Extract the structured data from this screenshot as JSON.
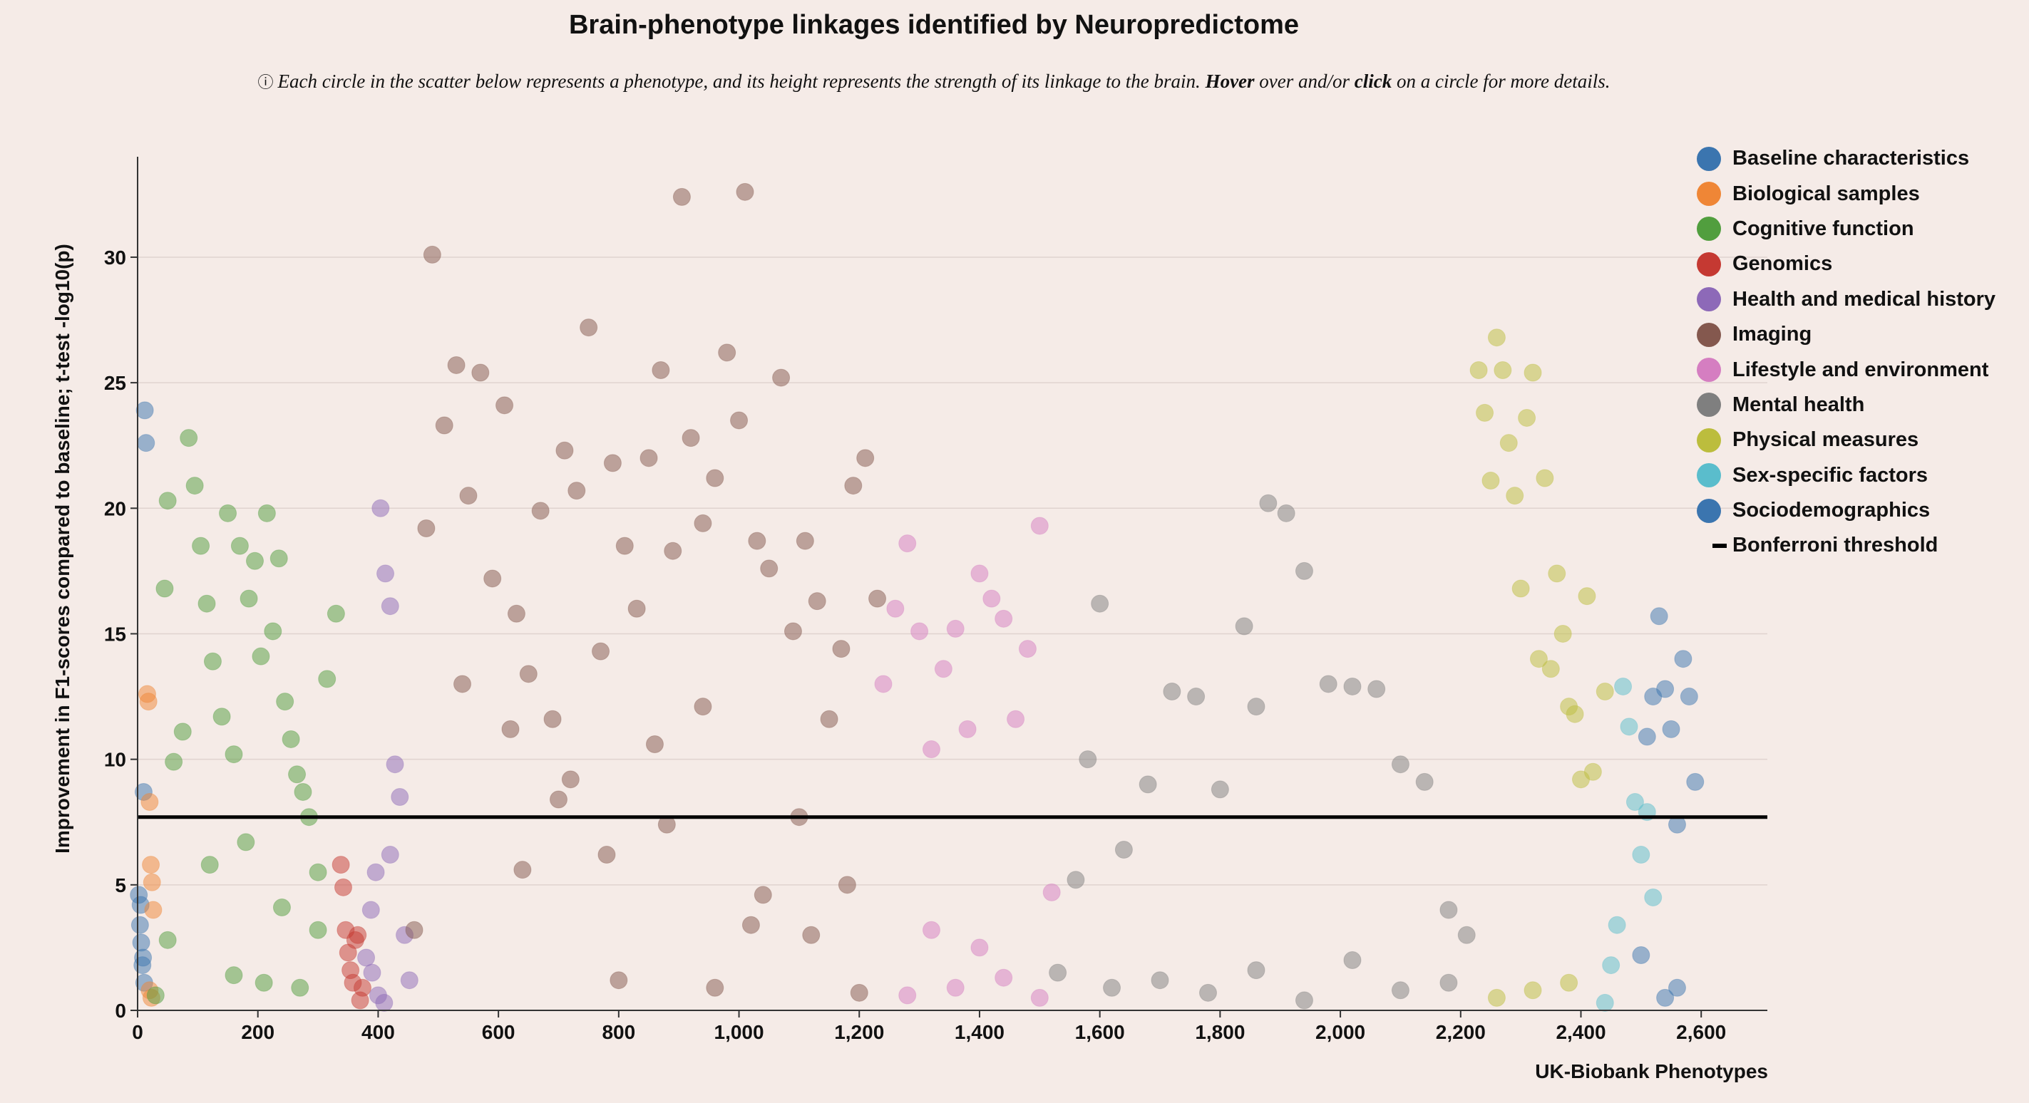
{
  "page": {
    "title": "Brain-phenotype linkages identified by Neuropredictome",
    "subtitle_icon": "ⓘ",
    "subtitle_part1": "Each circle in the scatter below represents a phenotype, and its height represents the strength of its linkage to the brain. ",
    "subtitle_hover": "Hover",
    "subtitle_part2": " over and/or ",
    "subtitle_click": "click",
    "subtitle_part3": " on a circle for more details."
  },
  "legend": {
    "threshold_label": "Bonferroni threshold"
  },
  "chart_data": {
    "type": "scatter",
    "title": "Brain-phenotype linkages identified by Neuropredictome",
    "xlabel": "UK-Biobank Phenotypes",
    "ylabel": "Improvement in F1-scores compared to baseline; t-test -log10(p)",
    "xlim": [
      0,
      2710
    ],
    "ylim": [
      0,
      34
    ],
    "xticks": [
      0,
      200,
      400,
      600,
      800,
      1000,
      1200,
      1400,
      1600,
      1800,
      2000,
      2200,
      2400,
      2600
    ],
    "xtick_labels": [
      "0",
      "200",
      "400",
      "600",
      "800",
      "1,000",
      "1,200",
      "1,400",
      "1,600",
      "1,800",
      "2,000",
      "2,200",
      "2,400",
      "2,600"
    ],
    "yticks": [
      0,
      5,
      10,
      15,
      20,
      25,
      30
    ],
    "grid": "horizontal",
    "legend_position": "top-right",
    "threshold": {
      "label": "Bonferroni threshold",
      "y": 7.7
    },
    "series": [
      {
        "name": "Baseline characteristics",
        "color": "#3b75af",
        "x": [
          2,
          4,
          6,
          8,
          10,
          12,
          14,
          5,
          9,
          11
        ],
        "y": [
          4.6,
          3.4,
          2.7,
          1.8,
          8.7,
          23.9,
          22.6,
          4.2,
          2.1,
          1.1
        ]
      },
      {
        "name": "Biological samples",
        "color": "#ef8636",
        "x": [
          16,
          18,
          20,
          22,
          24,
          26,
          20,
          23
        ],
        "y": [
          12.6,
          12.3,
          8.3,
          5.8,
          5.1,
          4.0,
          0.8,
          0.5
        ]
      },
      {
        "name": "Cognitive function",
        "color": "#519e3e",
        "x": [
          30,
          45,
          50,
          60,
          75,
          85,
          95,
          105,
          115,
          125,
          140,
          150,
          160,
          170,
          185,
          195,
          205,
          215,
          225,
          235,
          245,
          255,
          265,
          275,
          285,
          300,
          315,
          330,
          50,
          120,
          180,
          240,
          300,
          210,
          270,
          160
        ],
        "y": [
          0.6,
          16.8,
          20.3,
          9.9,
          11.1,
          22.8,
          20.9,
          18.5,
          16.2,
          13.9,
          11.7,
          19.8,
          10.2,
          18.5,
          16.4,
          17.9,
          14.1,
          19.8,
          15.1,
          18.0,
          12.3,
          10.8,
          9.4,
          8.7,
          7.7,
          5.5,
          13.2,
          15.8,
          2.8,
          5.8,
          6.7,
          4.1,
          3.2,
          1.1,
          0.9,
          1.4
        ]
      },
      {
        "name": "Genomics",
        "color": "#c53932",
        "x": [
          338,
          342,
          346,
          350,
          354,
          358,
          362,
          366,
          370,
          374
        ],
        "y": [
          5.8,
          4.9,
          3.2,
          2.3,
          1.6,
          1.1,
          2.8,
          3.0,
          0.4,
          0.9
        ]
      },
      {
        "name": "Health and medical history",
        "color": "#8d69b8",
        "x": [
          380,
          388,
          396,
          404,
          412,
          420,
          428,
          436,
          444,
          452,
          400,
          410,
          390,
          420
        ],
        "y": [
          2.1,
          4.0,
          5.5,
          20.0,
          17.4,
          16.1,
          9.8,
          8.5,
          3.0,
          1.2,
          0.6,
          0.3,
          1.5,
          6.2
        ]
      },
      {
        "name": "Imaging",
        "color": "#84584e",
        "x": [
          460,
          480,
          490,
          510,
          530,
          550,
          570,
          590,
          610,
          630,
          650,
          670,
          690,
          710,
          730,
          750,
          770,
          790,
          810,
          830,
          850,
          870,
          890,
          905,
          920,
          940,
          960,
          980,
          1000,
          1010,
          1030,
          1050,
          1070,
          1090,
          1110,
          1130,
          1150,
          1170,
          1190,
          1210,
          1230,
          640,
          720,
          800,
          880,
          960,
          1040,
          1120,
          1200,
          540,
          620,
          700,
          780,
          860,
          940,
          1020,
          1100,
          1180
        ],
        "y": [
          3.2,
          19.2,
          30.1,
          23.3,
          25.7,
          20.5,
          25.4,
          17.2,
          24.1,
          15.8,
          13.4,
          19.9,
          11.6,
          22.3,
          20.7,
          27.2,
          14.3,
          21.8,
          18.5,
          16.0,
          22.0,
          25.5,
          18.3,
          32.4,
          22.8,
          19.4,
          21.2,
          26.2,
          23.5,
          32.6,
          18.7,
          17.6,
          25.2,
          15.1,
          18.7,
          16.3,
          11.6,
          14.4,
          20.9,
          22.0,
          16.4,
          5.6,
          9.2,
          1.2,
          7.4,
          0.9,
          4.6,
          3.0,
          0.7,
          13.0,
          11.2,
          8.4,
          6.2,
          10.6,
          12.1,
          3.4,
          7.7,
          5.0
        ]
      },
      {
        "name": "Lifestyle and environment",
        "color": "#d57ec1",
        "x": [
          1240,
          1260,
          1280,
          1300,
          1320,
          1340,
          1360,
          1380,
          1400,
          1420,
          1440,
          1460,
          1480,
          1500,
          1520,
          1280,
          1360,
          1440,
          1500,
          1320,
          1400
        ],
        "y": [
          13.0,
          16.0,
          18.6,
          15.1,
          10.4,
          13.6,
          15.2,
          11.2,
          17.4,
          16.4,
          15.6,
          11.6,
          14.4,
          19.3,
          4.7,
          0.6,
          0.9,
          1.3,
          0.5,
          3.2,
          2.5
        ]
      },
      {
        "name": "Mental health",
        "color": "#7f7f7f",
        "x": [
          1530,
          1560,
          1580,
          1600,
          1640,
          1680,
          1720,
          1760,
          1800,
          1840,
          1860,
          1880,
          1910,
          1940,
          1980,
          2020,
          2060,
          2100,
          2140,
          2180,
          2210,
          1620,
          1700,
          1780,
          1860,
          1940,
          2020,
          2100,
          2180
        ],
        "y": [
          1.5,
          5.2,
          10.0,
          16.2,
          6.4,
          9.0,
          12.7,
          12.5,
          8.8,
          15.3,
          12.1,
          20.2,
          19.8,
          17.5,
          13.0,
          12.9,
          12.8,
          9.8,
          9.1,
          4.0,
          3.0,
          0.9,
          1.2,
          0.7,
          1.6,
          0.4,
          2.0,
          0.8,
          1.1
        ]
      },
      {
        "name": "Physical measures",
        "color": "#bcbd3d",
        "x": [
          2230,
          2240,
          2250,
          2260,
          2270,
          2280,
          2290,
          2300,
          2310,
          2320,
          2330,
          2340,
          2350,
          2360,
          2370,
          2380,
          2390,
          2400,
          2410,
          2420,
          2440,
          2260,
          2320,
          2380
        ],
        "y": [
          25.5,
          23.8,
          21.1,
          26.8,
          25.5,
          22.6,
          20.5,
          16.8,
          23.6,
          25.4,
          14.0,
          21.2,
          13.6,
          17.4,
          15.0,
          12.1,
          11.8,
          9.2,
          16.5,
          9.5,
          12.7,
          0.5,
          0.8,
          1.1
        ]
      },
      {
        "name": "Sex-specific factors",
        "color": "#5abdcc",
        "x": [
          2440,
          2450,
          2460,
          2470,
          2480,
          2490,
          2500,
          2510,
          2520
        ],
        "y": [
          0.3,
          1.8,
          3.4,
          12.9,
          11.3,
          8.3,
          6.2,
          7.9,
          4.5
        ]
      },
      {
        "name": "Sociodemographics",
        "color": "#3b75af",
        "x": [
          2500,
          2510,
          2520,
          2530,
          2540,
          2550,
          2560,
          2570,
          2580,
          2590,
          2540,
          2560
        ],
        "y": [
          2.2,
          10.9,
          12.5,
          15.7,
          12.8,
          11.2,
          7.4,
          14.0,
          12.5,
          9.1,
          0.5,
          0.9
        ]
      }
    ]
  }
}
